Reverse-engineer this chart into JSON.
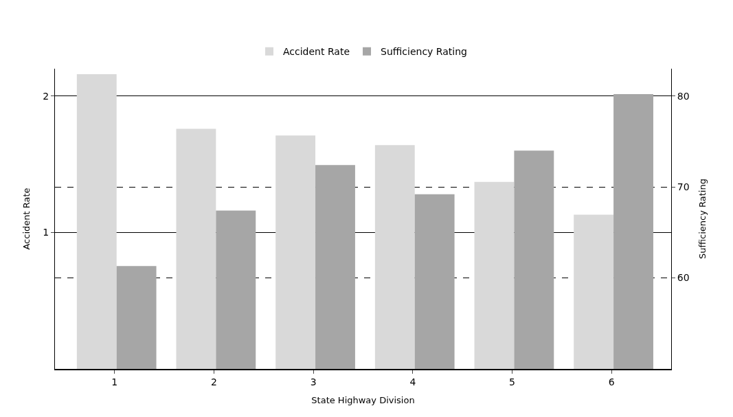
{
  "chart_data": {
    "type": "bar",
    "categories": [
      "1",
      "2",
      "3",
      "4",
      "5",
      "6"
    ],
    "series": [
      {
        "name": "Accident Rate",
        "color": "#d9d9d9",
        "values": [
          2.16,
          1.76,
          1.71,
          1.64,
          1.37,
          1.13
        ]
      },
      {
        "name": "Sufficiency Rating",
        "color": "#a6a6a6",
        "axis": "y2",
        "values": [
          61.3,
          67.4,
          72.4,
          69.2,
          74.0,
          80.2
        ]
      }
    ],
    "xlabel": "State Highway Division",
    "ylabel": "Accident Rate",
    "y2label": "Sufficiency Rating",
    "ylim": [
      0,
      2.2
    ],
    "yticks": [
      1,
      2
    ],
    "y2lim": [
      50,
      83
    ],
    "y2ticks": [
      60,
      70,
      80
    ],
    "grid": true,
    "legend": "top"
  }
}
